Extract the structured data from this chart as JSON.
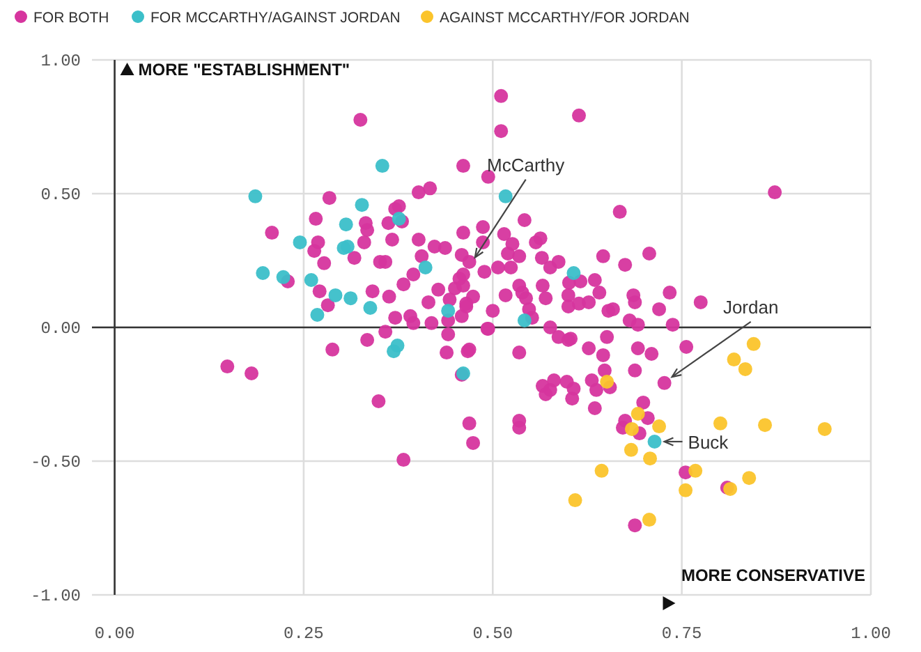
{
  "chart_data": {
    "type": "scatter",
    "xlim": [
      -0.03,
      1.0
    ],
    "ylim": [
      -1.0,
      1.0
    ],
    "xticks": [
      {
        "value": 0,
        "label": "0.00"
      },
      {
        "value": 0.25,
        "label": "0.25"
      },
      {
        "value": 0.5,
        "label": "0.50"
      },
      {
        "value": 0.75,
        "label": "0.75"
      },
      {
        "value": 1,
        "label": "1.00"
      }
    ],
    "yticks": [
      {
        "value": -1,
        "label": "-1.00"
      },
      {
        "value": -0.5,
        "label": "-0.50"
      },
      {
        "value": 0,
        "label": "0.00"
      },
      {
        "value": 0.5,
        "label": "0.50"
      },
      {
        "value": 1,
        "label": "1.00"
      }
    ],
    "grid": true,
    "legend": "top left",
    "marker": "circle",
    "annotations": [
      "MORE \"ESTABLISHMENT\"",
      "MORE CONSERVATIVE",
      {
        "text": "McCarthy",
        "x": 0.47,
        "y": 0.23
      },
      {
        "text": "Jordan",
        "x": 0.727,
        "y": -0.208
      },
      {
        "text": "Buck",
        "x": 0.714,
        "y": -0.427
      }
    ],
    "series": [
      {
        "name": "FOR BOTH",
        "color": "#d6359e",
        "x": [
          0.325,
          0.461,
          0.402,
          0.417,
          0.284,
          0.266,
          0.208,
          0.332,
          0.334,
          0.362,
          0.371,
          0.376,
          0.38,
          0.367,
          0.33,
          0.269,
          0.264,
          0.317,
          0.277,
          0.351,
          0.358,
          0.402,
          0.406,
          0.423,
          0.437,
          0.461,
          0.459,
          0.395,
          0.382,
          0.341,
          0.363,
          0.271,
          0.282,
          0.229,
          0.428,
          0.415,
          0.371,
          0.391,
          0.395,
          0.419,
          0.441,
          0.459,
          0.45,
          0.456,
          0.443,
          0.465,
          0.358,
          0.441,
          0.334,
          0.288,
          0.439,
          0.467,
          0.149,
          0.511,
          0.614,
          0.511,
          0.494,
          0.668,
          0.542,
          0.487,
          0.487,
          0.515,
          0.526,
          0.557,
          0.563,
          0.52,
          0.535,
          0.565,
          0.507,
          0.524,
          0.489,
          0.469,
          0.461,
          0.461,
          0.474,
          0.5,
          0.465,
          0.494,
          0.469,
          0.535,
          0.517,
          0.535,
          0.539,
          0.544,
          0.548,
          0.552,
          0.566,
          0.57,
          0.576,
          0.587,
          0.601,
          0.6,
          0.6,
          0.616,
          0.614,
          0.627,
          0.635,
          0.641,
          0.653,
          0.659,
          0.646,
          0.675,
          0.707,
          0.686,
          0.688,
          0.72,
          0.734,
          0.775,
          0.738,
          0.681,
          0.692,
          0.576,
          0.587,
          0.6,
          0.651,
          0.627,
          0.646,
          0.692,
          0.71,
          0.756,
          0.181,
          0.349,
          0.382,
          0.459,
          0.469,
          0.474,
          0.493,
          0.535,
          0.535,
          0.603,
          0.648,
          0.688,
          0.727,
          0.566,
          0.576,
          0.581,
          0.598,
          0.607,
          0.605,
          0.57,
          0.631,
          0.637,
          0.655,
          0.635,
          0.699,
          0.705,
          0.675,
          0.672,
          0.694,
          0.755,
          0.81,
          0.688,
          0.873
        ],
        "values": [
          0.776,
          0.604,
          0.505,
          0.52,
          0.484,
          0.406,
          0.354,
          0.39,
          0.364,
          0.39,
          0.443,
          0.453,
          0.396,
          0.328,
          0.318,
          0.318,
          0.286,
          0.26,
          0.24,
          0.245,
          0.245,
          0.328,
          0.266,
          0.302,
          0.297,
          0.354,
          0.271,
          0.198,
          0.161,
          0.135,
          0.115,
          0.135,
          0.083,
          0.172,
          0.141,
          0.094,
          0.036,
          0.042,
          0.016,
          0.016,
          0.026,
          0.042,
          0.146,
          0.182,
          0.104,
          0.078,
          -0.016,
          -0.026,
          -0.047,
          -0.083,
          -0.094,
          -0.089,
          -0.146,
          0.865,
          0.792,
          0.734,
          0.563,
          0.432,
          0.401,
          0.375,
          0.318,
          0.349,
          0.312,
          0.318,
          0.333,
          0.276,
          0.266,
          0.26,
          0.224,
          0.224,
          0.208,
          0.245,
          0.198,
          0.156,
          0.115,
          0.062,
          0.089,
          -0.005,
          -0.083,
          -0.094,
          0.12,
          0.156,
          0.13,
          0.109,
          0.068,
          0.036,
          0.156,
          0.109,
          0.224,
          0.245,
          0.167,
          0.12,
          0.078,
          0.172,
          0.089,
          0.094,
          0.177,
          0.13,
          0.062,
          0.068,
          0.266,
          0.234,
          0.276,
          0.12,
          0.094,
          0.068,
          0.13,
          0.094,
          0.01,
          0.026,
          0.01,
          0.0,
          -0.036,
          -0.047,
          -0.036,
          -0.078,
          -0.104,
          -0.078,
          -0.099,
          -0.073,
          -0.172,
          -0.276,
          -0.495,
          -0.177,
          -0.359,
          -0.432,
          -0.005,
          -0.349,
          -0.375,
          -0.042,
          -0.161,
          -0.161,
          -0.208,
          -0.219,
          -0.234,
          -0.198,
          -0.203,
          -0.229,
          -0.266,
          -0.25,
          -0.198,
          -0.234,
          -0.224,
          -0.302,
          -0.281,
          -0.339,
          -0.349,
          -0.375,
          -0.396,
          -0.542,
          -0.599,
          -0.74,
          0.505
        ]
      },
      {
        "name": "FOR MCCARTHY/AGAINST JORDAN",
        "color": "#3bbfc9",
        "x": [
          0.354,
          0.186,
          0.327,
          0.306,
          0.245,
          0.308,
          0.303,
          0.196,
          0.223,
          0.26,
          0.292,
          0.312,
          0.338,
          0.268,
          0.376,
          0.411,
          0.441,
          0.369,
          0.374,
          0.517,
          0.607,
          0.542,
          0.461,
          0.714
        ],
        "values": [
          0.604,
          0.49,
          0.458,
          0.385,
          0.318,
          0.302,
          0.297,
          0.203,
          0.188,
          0.177,
          0.12,
          0.109,
          0.073,
          0.047,
          0.406,
          0.224,
          0.062,
          -0.089,
          -0.068,
          0.49,
          0.203,
          0.026,
          -0.172,
          -0.427
        ]
      },
      {
        "name": "AGAINST MCCARTHY/FOR JORDAN",
        "color": "#fbc42b",
        "x": [
          0.845,
          0.819,
          0.834,
          0.651,
          0.692,
          0.72,
          0.801,
          0.86,
          0.939,
          0.684,
          0.683,
          0.708,
          0.644,
          0.768,
          0.755,
          0.839,
          0.814,
          0.609,
          0.707
        ],
        "values": [
          -0.062,
          -0.12,
          -0.156,
          -0.203,
          -0.323,
          -0.37,
          -0.359,
          -0.365,
          -0.38,
          -0.38,
          -0.458,
          -0.49,
          -0.536,
          -0.536,
          -0.609,
          -0.563,
          -0.604,
          -0.646,
          -0.719
        ]
      }
    ]
  }
}
